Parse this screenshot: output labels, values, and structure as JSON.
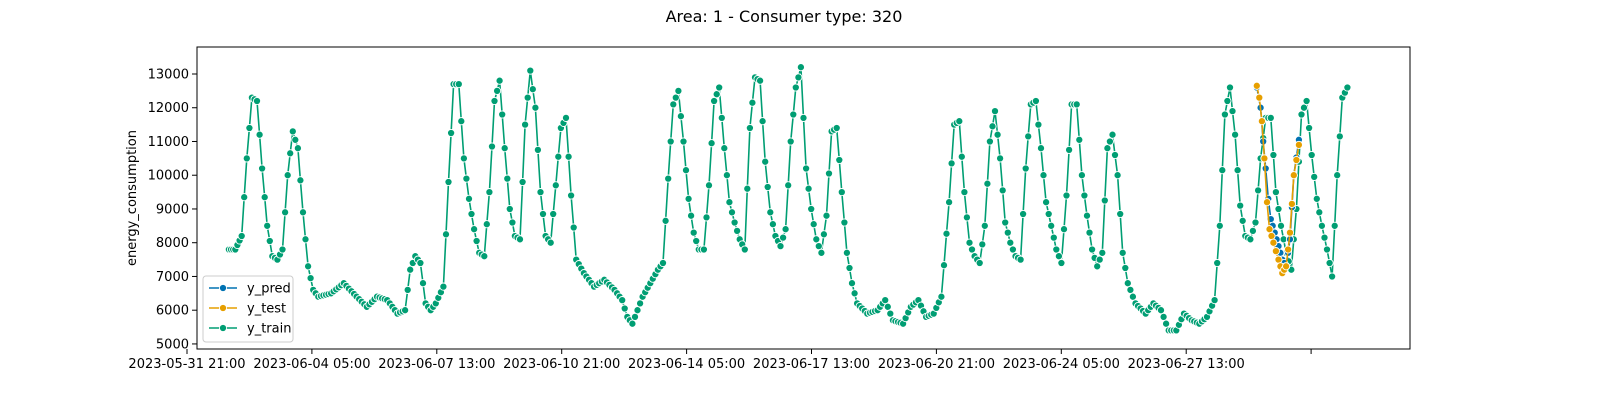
{
  "chart_data": {
    "type": "line",
    "title": "Area: 1 - Consumer type: 320",
    "xlabel": "",
    "ylabel": "energy_consumption",
    "ylim": [
      4850,
      13800
    ],
    "xlim": [
      -25,
      925
    ],
    "yticks": [
      5000,
      6000,
      7000,
      8000,
      9000,
      10000,
      11000,
      12000,
      13000
    ],
    "xtick_labels": [
      "2023-05-31 21:00",
      "2023-06-04 05:00",
      "2023-06-07 13:00",
      "2023-06-10 21:00",
      "2023-06-14 05:00",
      "2023-06-17 13:00",
      "2023-06-20 21:00",
      "2023-06-24 05:00",
      "2023-06-27 13:00",
      ""
    ],
    "grid": false,
    "legend_position": "lower-left",
    "series": [
      {
        "name": "y_pred",
        "color": "#0072b2",
        "keypoints": [
          [
            805,
            12600
          ],
          [
            808,
            12000
          ],
          [
            810,
            11000
          ],
          [
            812,
            10200
          ],
          [
            814,
            9300
          ],
          [
            816,
            8700
          ],
          [
            819,
            8300
          ],
          [
            822,
            7900
          ],
          [
            825,
            7500
          ],
          [
            828,
            7300
          ],
          [
            831,
            8100
          ],
          [
            834,
            10000
          ],
          [
            838,
            11050
          ]
        ]
      },
      {
        "name": "y_test",
        "color": "#e69f00",
        "keypoints": [
          [
            805,
            12650
          ],
          [
            807,
            12300
          ],
          [
            809,
            11600
          ],
          [
            811,
            10500
          ],
          [
            813,
            9200
          ],
          [
            815,
            8400
          ],
          [
            818,
            8000
          ],
          [
            822,
            7500
          ],
          [
            825,
            7100
          ],
          [
            828,
            7300
          ],
          [
            831,
            8300
          ],
          [
            834,
            10000
          ],
          [
            838,
            10900
          ]
        ]
      },
      {
        "name": "y_train",
        "color": "#009e73",
        "keypoints": [
          [
            0,
            7800
          ],
          [
            5,
            7800
          ],
          [
            10,
            8200
          ],
          [
            14,
            10500
          ],
          [
            18,
            12300
          ],
          [
            22,
            12200
          ],
          [
            26,
            10200
          ],
          [
            30,
            8500
          ],
          [
            34,
            7600
          ],
          [
            38,
            7500
          ],
          [
            42,
            7800
          ],
          [
            46,
            10000
          ],
          [
            50,
            11300
          ],
          [
            54,
            10800
          ],
          [
            58,
            8900
          ],
          [
            62,
            7300
          ],
          [
            66,
            6600
          ],
          [
            70,
            6400
          ],
          [
            80,
            6500
          ],
          [
            90,
            6800
          ],
          [
            100,
            6400
          ],
          [
            108,
            6100
          ],
          [
            116,
            6400
          ],
          [
            124,
            6300
          ],
          [
            132,
            5900
          ],
          [
            138,
            6000
          ],
          [
            142,
            7200
          ],
          [
            146,
            7600
          ],
          [
            150,
            7400
          ],
          [
            154,
            6200
          ],
          [
            158,
            6000
          ],
          [
            162,
            6200
          ],
          [
            168,
            6700
          ],
          [
            172,
            9800
          ],
          [
            176,
            12700
          ],
          [
            180,
            12700
          ],
          [
            184,
            10500
          ],
          [
            188,
            9300
          ],
          [
            192,
            8400
          ],
          [
            196,
            7700
          ],
          [
            200,
            7600
          ],
          [
            204,
            9500
          ],
          [
            208,
            12200
          ],
          [
            212,
            12800
          ],
          [
            216,
            10800
          ],
          [
            220,
            9000
          ],
          [
            224,
            8200
          ],
          [
            228,
            8100
          ],
          [
            232,
            11500
          ],
          [
            236,
            13100
          ],
          [
            240,
            12000
          ],
          [
            244,
            9500
          ],
          [
            248,
            8200
          ],
          [
            252,
            8000
          ],
          [
            256,
            9700
          ],
          [
            260,
            11400
          ],
          [
            264,
            11700
          ],
          [
            268,
            9400
          ],
          [
            272,
            7500
          ],
          [
            278,
            7100
          ],
          [
            286,
            6700
          ],
          [
            294,
            6900
          ],
          [
            302,
            6600
          ],
          [
            308,
            6300
          ],
          [
            312,
            5800
          ],
          [
            316,
            5600
          ],
          [
            320,
            6000
          ],
          [
            324,
            6400
          ],
          [
            330,
            6800
          ],
          [
            336,
            7200
          ],
          [
            340,
            7400
          ],
          [
            344,
            9900
          ],
          [
            348,
            12100
          ],
          [
            352,
            12500
          ],
          [
            356,
            11000
          ],
          [
            360,
            9300
          ],
          [
            364,
            8300
          ],
          [
            368,
            7800
          ],
          [
            372,
            7800
          ],
          [
            376,
            9700
          ],
          [
            380,
            12200
          ],
          [
            384,
            12600
          ],
          [
            388,
            10800
          ],
          [
            392,
            9200
          ],
          [
            396,
            8600
          ],
          [
            400,
            8100
          ],
          [
            404,
            7800
          ],
          [
            408,
            11400
          ],
          [
            412,
            12900
          ],
          [
            416,
            12800
          ],
          [
            420,
            10400
          ],
          [
            424,
            8900
          ],
          [
            428,
            8200
          ],
          [
            432,
            7900
          ],
          [
            436,
            8400
          ],
          [
            440,
            11000
          ],
          [
            444,
            12600
          ],
          [
            448,
            13200
          ],
          [
            452,
            10200
          ],
          [
            456,
            9000
          ],
          [
            460,
            8100
          ],
          [
            464,
            7700
          ],
          [
            468,
            8800
          ],
          [
            472,
            11300
          ],
          [
            476,
            11400
          ],
          [
            480,
            9500
          ],
          [
            484,
            7700
          ],
          [
            488,
            6800
          ],
          [
            492,
            6200
          ],
          [
            500,
            5900
          ],
          [
            508,
            6000
          ],
          [
            514,
            6300
          ],
          [
            520,
            5700
          ],
          [
            528,
            5600
          ],
          [
            534,
            6100
          ],
          [
            540,
            6300
          ],
          [
            546,
            5800
          ],
          [
            552,
            5900
          ],
          [
            558,
            6400
          ],
          [
            564,
            9200
          ],
          [
            568,
            11500
          ],
          [
            572,
            11600
          ],
          [
            576,
            9500
          ],
          [
            580,
            8000
          ],
          [
            584,
            7600
          ],
          [
            588,
            7400
          ],
          [
            592,
            8500
          ],
          [
            596,
            11000
          ],
          [
            600,
            11900
          ],
          [
            604,
            10500
          ],
          [
            608,
            8600
          ],
          [
            612,
            8000
          ],
          [
            616,
            7600
          ],
          [
            620,
            7500
          ],
          [
            624,
            10200
          ],
          [
            628,
            12100
          ],
          [
            632,
            12200
          ],
          [
            636,
            10800
          ],
          [
            640,
            9200
          ],
          [
            644,
            8500
          ],
          [
            648,
            7800
          ],
          [
            652,
            7400
          ],
          [
            656,
            9400
          ],
          [
            660,
            12100
          ],
          [
            664,
            12100
          ],
          [
            668,
            10000
          ],
          [
            672,
            8800
          ],
          [
            676,
            7800
          ],
          [
            680,
            7300
          ],
          [
            684,
            7700
          ],
          [
            688,
            10800
          ],
          [
            692,
            11200
          ],
          [
            696,
            10000
          ],
          [
            700,
            7700
          ],
          [
            704,
            6800
          ],
          [
            710,
            6200
          ],
          [
            718,
            5900
          ],
          [
            724,
            6200
          ],
          [
            730,
            6000
          ],
          [
            736,
            5400
          ],
          [
            742,
            5400
          ],
          [
            748,
            5900
          ],
          [
            754,
            5700
          ],
          [
            760,
            5600
          ],
          [
            766,
            5800
          ],
          [
            772,
            6300
          ],
          [
            776,
            8500
          ],
          [
            780,
            11800
          ],
          [
            784,
            12600
          ],
          [
            788,
            11200
          ],
          [
            792,
            9100
          ],
          [
            796,
            8200
          ],
          [
            800,
            8100
          ],
          [
            804,
            8600
          ],
          [
            808,
            10500
          ],
          [
            812,
            11700
          ],
          [
            816,
            11700
          ],
          [
            820,
            9500
          ],
          [
            824,
            8500
          ],
          [
            828,
            7700
          ],
          [
            832,
            7200
          ],
          [
            836,
            9000
          ],
          [
            840,
            11800
          ],
          [
            844,
            12200
          ],
          [
            848,
            10600
          ],
          [
            852,
            9300
          ],
          [
            856,
            8500
          ],
          [
            860,
            7800
          ],
          [
            864,
            7000
          ],
          [
            868,
            10000
          ],
          [
            872,
            12300
          ],
          [
            876,
            12600
          ]
        ]
      }
    ]
  },
  "legend": {
    "items": [
      {
        "label": "y_pred",
        "color": "#0072b2"
      },
      {
        "label": "y_test",
        "color": "#e69f00"
      },
      {
        "label": "y_train",
        "color": "#009e73"
      }
    ]
  }
}
